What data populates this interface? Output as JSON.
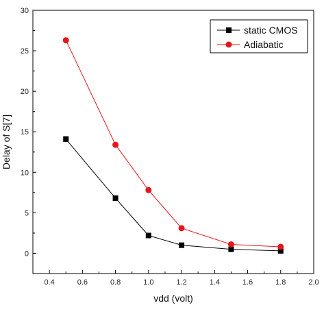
{
  "chart_data": {
    "type": "line",
    "title": "",
    "xlabel": "vdd (volt)",
    "ylabel": "Delay of S[7]",
    "xlim": [
      0.3,
      2.0
    ],
    "ylim": [
      -2.5,
      30
    ],
    "x_ticks": [
      0.4,
      0.6,
      0.8,
      1.0,
      1.2,
      1.4,
      1.6,
      1.8,
      2.0
    ],
    "x_tick_labels": [
      "0.4",
      "0.6",
      "0.8",
      "1.0",
      "1.2",
      "1.4",
      "1.6",
      "1.8",
      "2.0"
    ],
    "y_ticks": [
      0,
      5,
      10,
      15,
      20,
      25,
      30
    ],
    "y_tick_labels": [
      "0",
      "5",
      "10",
      "15",
      "20",
      "25",
      "30"
    ],
    "grid": false,
    "legend_position": "top-right",
    "x": [
      0.5,
      0.8,
      1.0,
      1.2,
      1.5,
      1.8
    ],
    "series": [
      {
        "name": "static CMOS",
        "marker": "square",
        "color": "#000000",
        "values": [
          14.1,
          6.8,
          2.2,
          1.0,
          0.5,
          0.3
        ]
      },
      {
        "name": "Adiabatic",
        "marker": "circle",
        "color": "#e8141b",
        "values": [
          26.3,
          13.4,
          7.8,
          3.1,
          1.1,
          0.8
        ]
      }
    ]
  }
}
